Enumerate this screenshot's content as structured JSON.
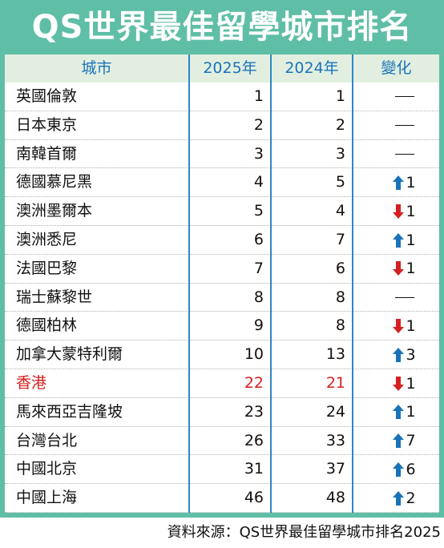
{
  "title": "QS世界最佳留學城市排名",
  "headers": {
    "city": "城市",
    "y2025": "2025年",
    "y2024": "2024年",
    "change": "變化"
  },
  "rows": [
    {
      "city": "英國倫敦",
      "y2025": "1",
      "y2024": "1",
      "dir": "none",
      "delta": ""
    },
    {
      "city": "日本東京",
      "y2025": "2",
      "y2024": "2",
      "dir": "none",
      "delta": ""
    },
    {
      "city": "南韓首爾",
      "y2025": "3",
      "y2024": "3",
      "dir": "none",
      "delta": ""
    },
    {
      "city": "德國慕尼黑",
      "y2025": "4",
      "y2024": "5",
      "dir": "up",
      "delta": "1"
    },
    {
      "city": "澳洲墨爾本",
      "y2025": "5",
      "y2024": "4",
      "dir": "down",
      "delta": "1"
    },
    {
      "city": "澳洲悉尼",
      "y2025": "6",
      "y2024": "7",
      "dir": "up",
      "delta": "1"
    },
    {
      "city": "法國巴黎",
      "y2025": "7",
      "y2024": "6",
      "dir": "down",
      "delta": "1"
    },
    {
      "city": "瑞士蘇黎世",
      "y2025": "8",
      "y2024": "8",
      "dir": "none",
      "delta": ""
    },
    {
      "city": "德國柏林",
      "y2025": "9",
      "y2024": "8",
      "dir": "down",
      "delta": "1"
    },
    {
      "city": "加拿大蒙特利爾",
      "y2025": "10",
      "y2024": "13",
      "dir": "up",
      "delta": "3"
    },
    {
      "city": "香港",
      "y2025": "22",
      "y2024": "21",
      "dir": "down",
      "delta": "1",
      "highlight": true
    },
    {
      "city": "馬來西亞吉隆坡",
      "y2025": "23",
      "y2024": "24",
      "dir": "up",
      "delta": "1"
    },
    {
      "city": "台灣台北",
      "y2025": "26",
      "y2024": "33",
      "dir": "up",
      "delta": "7"
    },
    {
      "city": "中國北京",
      "y2025": "31",
      "y2024": "37",
      "dir": "up",
      "delta": "6"
    },
    {
      "city": "中國上海",
      "y2025": "46",
      "y2024": "48",
      "dir": "up",
      "delta": "2"
    }
  ],
  "colors": {
    "up": "#1a73b9",
    "down": "#d62020",
    "highlight": "#d62020",
    "accent": "#5fbea6"
  },
  "footer": "資料來源：QS世界最佳留學城市排名2025"
}
